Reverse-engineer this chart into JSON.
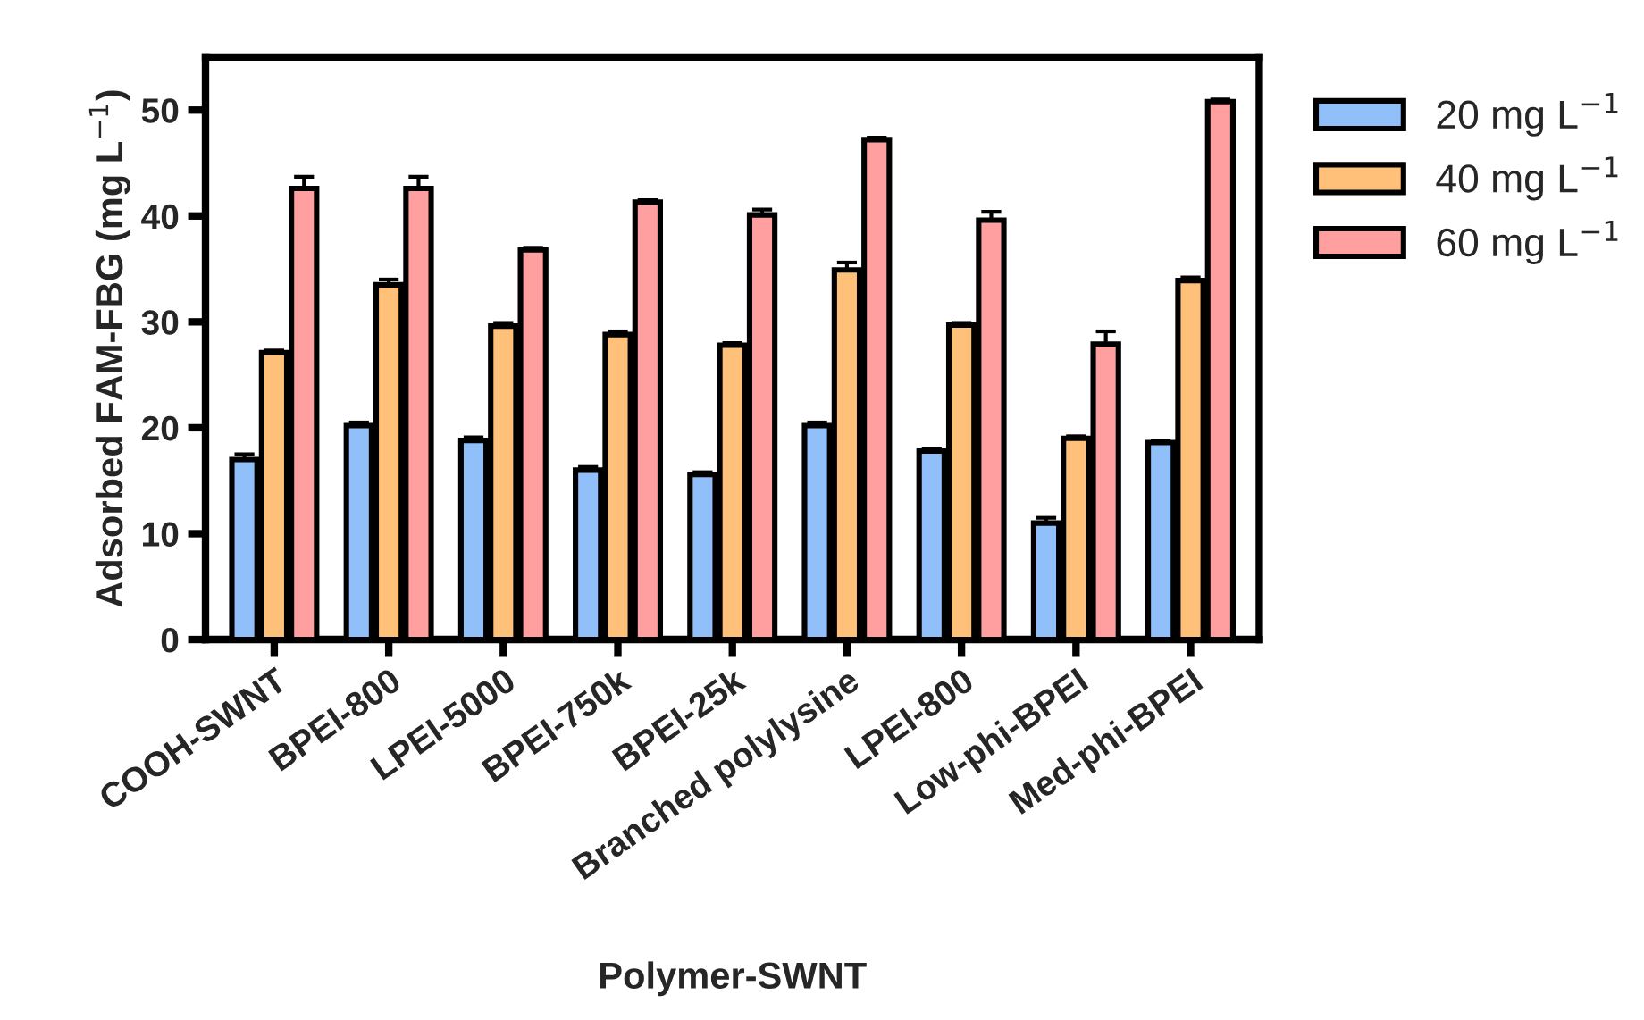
{
  "chart_data": {
    "type": "bar",
    "xlabel": "Polymer-SWNT",
    "ylabel": "Adsorbed FAM-FBG (mg L$^{−1}$)",
    "categories": [
      "COOH-SWNT",
      "BPEI-800",
      "LPEI-5000",
      "BPEI-750k",
      "BPEI-25k",
      "Branched polylysine",
      "LPEI-800",
      "Low-phi-BPEI",
      "Med-phi-BPEI"
    ],
    "series": [
      {
        "name": "20 mg L$^{−1}$",
        "color": "#90bff9",
        "values": [
          17.0,
          20.2,
          18.8,
          16.0,
          15.6,
          20.2,
          17.8,
          11.0,
          18.6
        ],
        "errors": [
          0.5,
          0.3,
          0.3,
          0.3,
          0.2,
          0.3,
          0.2,
          0.5,
          0.2
        ]
      },
      {
        "name": "40 mg L$^{−1}$",
        "color": "#ffc07a",
        "values": [
          27.1,
          33.5,
          29.6,
          28.8,
          27.8,
          34.9,
          29.7,
          19.0,
          33.9
        ],
        "errors": [
          0.2,
          0.5,
          0.3,
          0.3,
          0.2,
          0.7,
          0.2,
          0.2,
          0.3
        ]
      },
      {
        "name": "60 mg L$^{−1}$",
        "color": "#ff9f9f",
        "values": [
          42.6,
          42.6,
          36.8,
          41.3,
          40.1,
          47.2,
          39.6,
          27.9,
          50.8
        ],
        "errors": [
          1.1,
          1.1,
          0.2,
          0.2,
          0.5,
          0.2,
          0.8,
          1.2,
          0.2
        ]
      }
    ],
    "ylim": [
      0,
      55
    ],
    "yticks": [
      0,
      10,
      20,
      30,
      40,
      50
    ],
    "grid": false,
    "legend": "top right"
  }
}
